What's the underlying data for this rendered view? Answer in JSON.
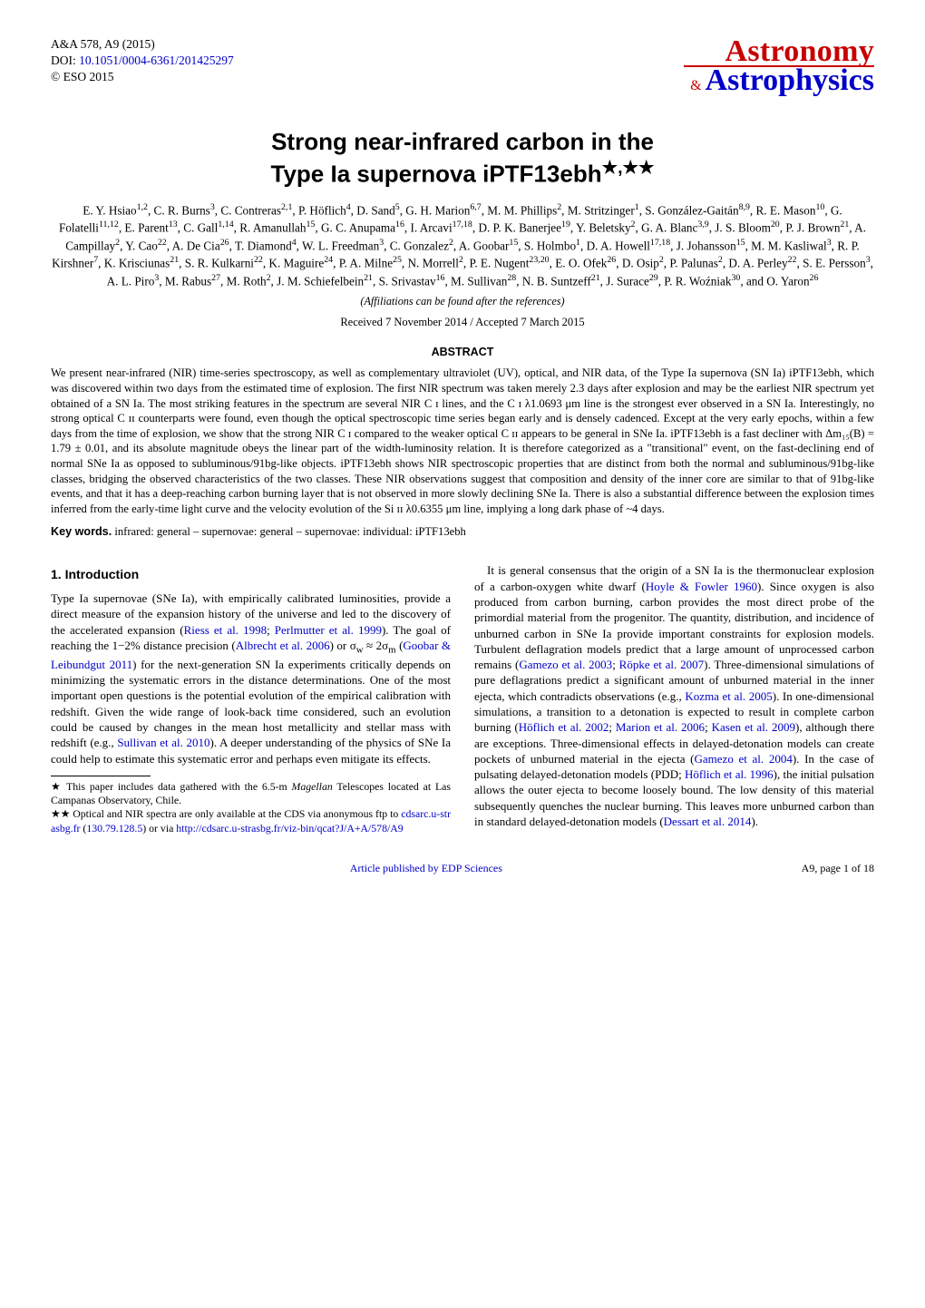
{
  "header": {
    "journal_ref": "A&A 578, A9 (2015)",
    "doi_prefix": "DOI: ",
    "doi_link": "10.1051/0004-6361/201425297",
    "copyright": "© ESO 2015",
    "logo_top": "Astronomy",
    "logo_amp": "&",
    "logo_bottom": "Astrophysics",
    "colors": {
      "red": "#c80000",
      "blue": "#0000c8"
    }
  },
  "title_line1": "Strong near-infrared carbon in the",
  "title_line2": "Type Ia supernova iPTF13ebh",
  "title_marks": "★,★★",
  "authors_html": "E. Y. Hsiao<sup>1,2</sup>, C. R. Burns<sup>3</sup>, C. Contreras<sup>2,1</sup>, P. Höflich<sup>4</sup>, D. Sand<sup>5</sup>, G. H. Marion<sup>6,7</sup>, M. M. Phillips<sup>2</sup>, M. Stritzinger<sup>1</sup>, S. González-Gaitán<sup>8,9</sup>, R. E. Mason<sup>10</sup>, G. Folatelli<sup>11,12</sup>, E. Parent<sup>13</sup>, C. Gall<sup>1,14</sup>, R. Amanullah<sup>15</sup>, G. C. Anupama<sup>16</sup>, I. Arcavi<sup>17,18</sup>, D. P. K. Banerjee<sup>19</sup>, Y. Beletsky<sup>2</sup>, G. A. Blanc<sup>3,9</sup>, J. S. Bloom<sup>20</sup>, P. J. Brown<sup>21</sup>, A. Campillay<sup>2</sup>, Y. Cao<sup>22</sup>, A. De Cia<sup>26</sup>, T. Diamond<sup>4</sup>, W. L. Freedman<sup>3</sup>, C. Gonzalez<sup>2</sup>, A. Goobar<sup>15</sup>, S. Holmbo<sup>1</sup>, D. A. Howell<sup>17,18</sup>, J. Johansson<sup>15</sup>, M. M. Kasliwal<sup>3</sup>, R. P. Kirshner<sup>7</sup>, K. Krisciunas<sup>21</sup>, S. R. Kulkarni<sup>22</sup>, K. Maguire<sup>24</sup>, P. A. Milne<sup>25</sup>, N. Morrell<sup>2</sup>, P. E. Nugent<sup>23,20</sup>, E. O. Ofek<sup>26</sup>, D. Osip<sup>2</sup>, P. Palunas<sup>2</sup>, D. A. Perley<sup>22</sup>, S. E. Persson<sup>3</sup>, A. L. Piro<sup>3</sup>, M. Rabus<sup>27</sup>, M. Roth<sup>2</sup>, J. M. Schiefelbein<sup>21</sup>, S. Srivastav<sup>16</sup>, M. Sullivan<sup>28</sup>, N. B. Suntzeff<sup>21</sup>, J. Surace<sup>29</sup>, P. R. Woźniak<sup>30</sup>, and O. Yaron<sup>26</sup>",
  "aff_note": "(Affiliations can be found after the references)",
  "dates": "Received 7 November 2014 / Accepted 7 March 2015",
  "abstract_heading": "ABSTRACT",
  "abstract": "We present near-infrared (NIR) time-series spectroscopy, as well as complementary ultraviolet (UV), optical, and NIR data, of the Type Ia supernova (SN Ia) iPTF13ebh, which was discovered within two days from the estimated time of explosion. The first NIR spectrum was taken merely 2.3 days after explosion and may be the earliest NIR spectrum yet obtained of a SN Ia. The most striking features in the spectrum are several NIR C ɪ lines, and the C ɪ λ1.0693 μm line is the strongest ever observed in a SN Ia. Interestingly, no strong optical C ɪɪ counterparts were found, even though the optical spectroscopic time series began early and is densely cadenced. Except at the very early epochs, within a few days from the time of explosion, we show that the strong NIR C ɪ compared to the weaker optical C ɪɪ appears to be general in SNe Ia. iPTF13ebh is a fast decliner with Δm₁₅(B) = 1.79 ± 0.01, and its absolute magnitude obeys the linear part of the width-luminosity relation. It is therefore categorized as a \"transitional\" event, on the fast-declining end of normal SNe Ia as opposed to subluminous/91bg-like objects. iPTF13ebh shows NIR spectroscopic properties that are distinct from both the normal and subluminous/91bg-like classes, bridging the observed characteristics of the two classes. These NIR observations suggest that composition and density of the inner core are similar to that of 91bg-like events, and that it has a deep-reaching carbon burning layer that is not observed in more slowly declining SNe Ia. There is also a substantial difference between the explosion times inferred from the early-time light curve and the velocity evolution of the Si ɪɪ λ0.6355 μm line, implying a long dark phase of ~4 days.",
  "keywords_label": "Key words.",
  "keywords": " infrared: general – supernovae: general – supernovae: individual: iPTF13ebh",
  "section1_heading": "1. Introduction",
  "col_left_p1": "Type Ia supernovae (SNe Ia), with empirically calibrated luminosities, provide a direct measure of the expansion history of the universe and led to the discovery of the accelerated expansion (<span class=\"cite\">Riess et al. 1998</span>; <span class=\"cite\">Perlmutter et al. 1999</span>). The goal of reaching the 1−2% distance precision (<span class=\"cite\">Albrecht et al. 2006</span>) or σ<sub>w</sub> ≈ 2σ<sub>m</sub> (<span class=\"cite\">Goobar &amp; Leibundgut 2011</span>) for the next-generation SN Ia experiments critically depends on minimizing the systematic errors in the distance determinations. One of the most important open questions is the potential evolution of the empirical calibration with redshift. Given the wide range of look-back time considered, such an evolution could be caused by changes in the mean host metallicity and stellar mass with redshift (e.g., <span class=\"cite\">Sullivan et al. 2010</span>). A deeper understanding of the physics of SNe Ia could help to estimate this systematic error and perhaps even mitigate its effects.",
  "footnote1": "★ This paper includes data gathered with the 6.5-m <i>Magellan</i> Telescopes located at Las Campanas Observatory, Chile.",
  "footnote2_pre": "★★ Optical and NIR spectra are only available at the CDS via anonymous ftp to ",
  "footnote2_link1": "cdsarc.u-strasbg.fr",
  "footnote2_mid": " (",
  "footnote2_link2": "130.79.128.5",
  "footnote2_mid2": ") or via ",
  "footnote2_link3": "http://cdsarc.u-strasbg.fr/viz-bin/qcat?J/A+A/578/A9",
  "col_right_p1": "It is general consensus that the origin of a SN Ia is the thermonuclear explosion of a carbon-oxygen white dwarf (<span class=\"cite\">Hoyle &amp; Fowler 1960</span>). Since oxygen is also produced from carbon burning, carbon provides the most direct probe of the primordial material from the progenitor. The quantity, distribution, and incidence of unburned carbon in SNe Ia provide important constraints for explosion models. Turbulent deflagration models predict that a large amount of unprocessed carbon remains (<span class=\"cite\">Gamezo et al. 2003</span>; <span class=\"cite\">Röpke et al. 2007</span>). Three-dimensional simulations of pure deflagrations predict a significant amount of unburned material in the inner ejecta, which contradicts observations (e.g., <span class=\"cite\">Kozma et al. 2005</span>). In one-dimensional simulations, a transition to a detonation is expected to result in complete carbon burning (<span class=\"cite\">Höflich et al. 2002</span>; <span class=\"cite\">Marion et al. 2006</span>; <span class=\"cite\">Kasen et al. 2009</span>), although there are exceptions. Three-dimensional effects in delayed-detonation models can create pockets of unburned material in the ejecta (<span class=\"cite\">Gamezo et al. 2004</span>). In the case of pulsating delayed-detonation models (PDD; <span class=\"cite\">Höflich et al. 1996</span>), the initial pulsation allows the outer ejecta to become loosely bound. The low density of this material subsequently quenches the nuclear burning. This leaves more unburned carbon than in standard delayed-detonation models (<span class=\"cite\">Dessart et al. 2014</span>).",
  "footer_center": "Article published by EDP Sciences",
  "footer_right": "A9, page 1 of 18"
}
